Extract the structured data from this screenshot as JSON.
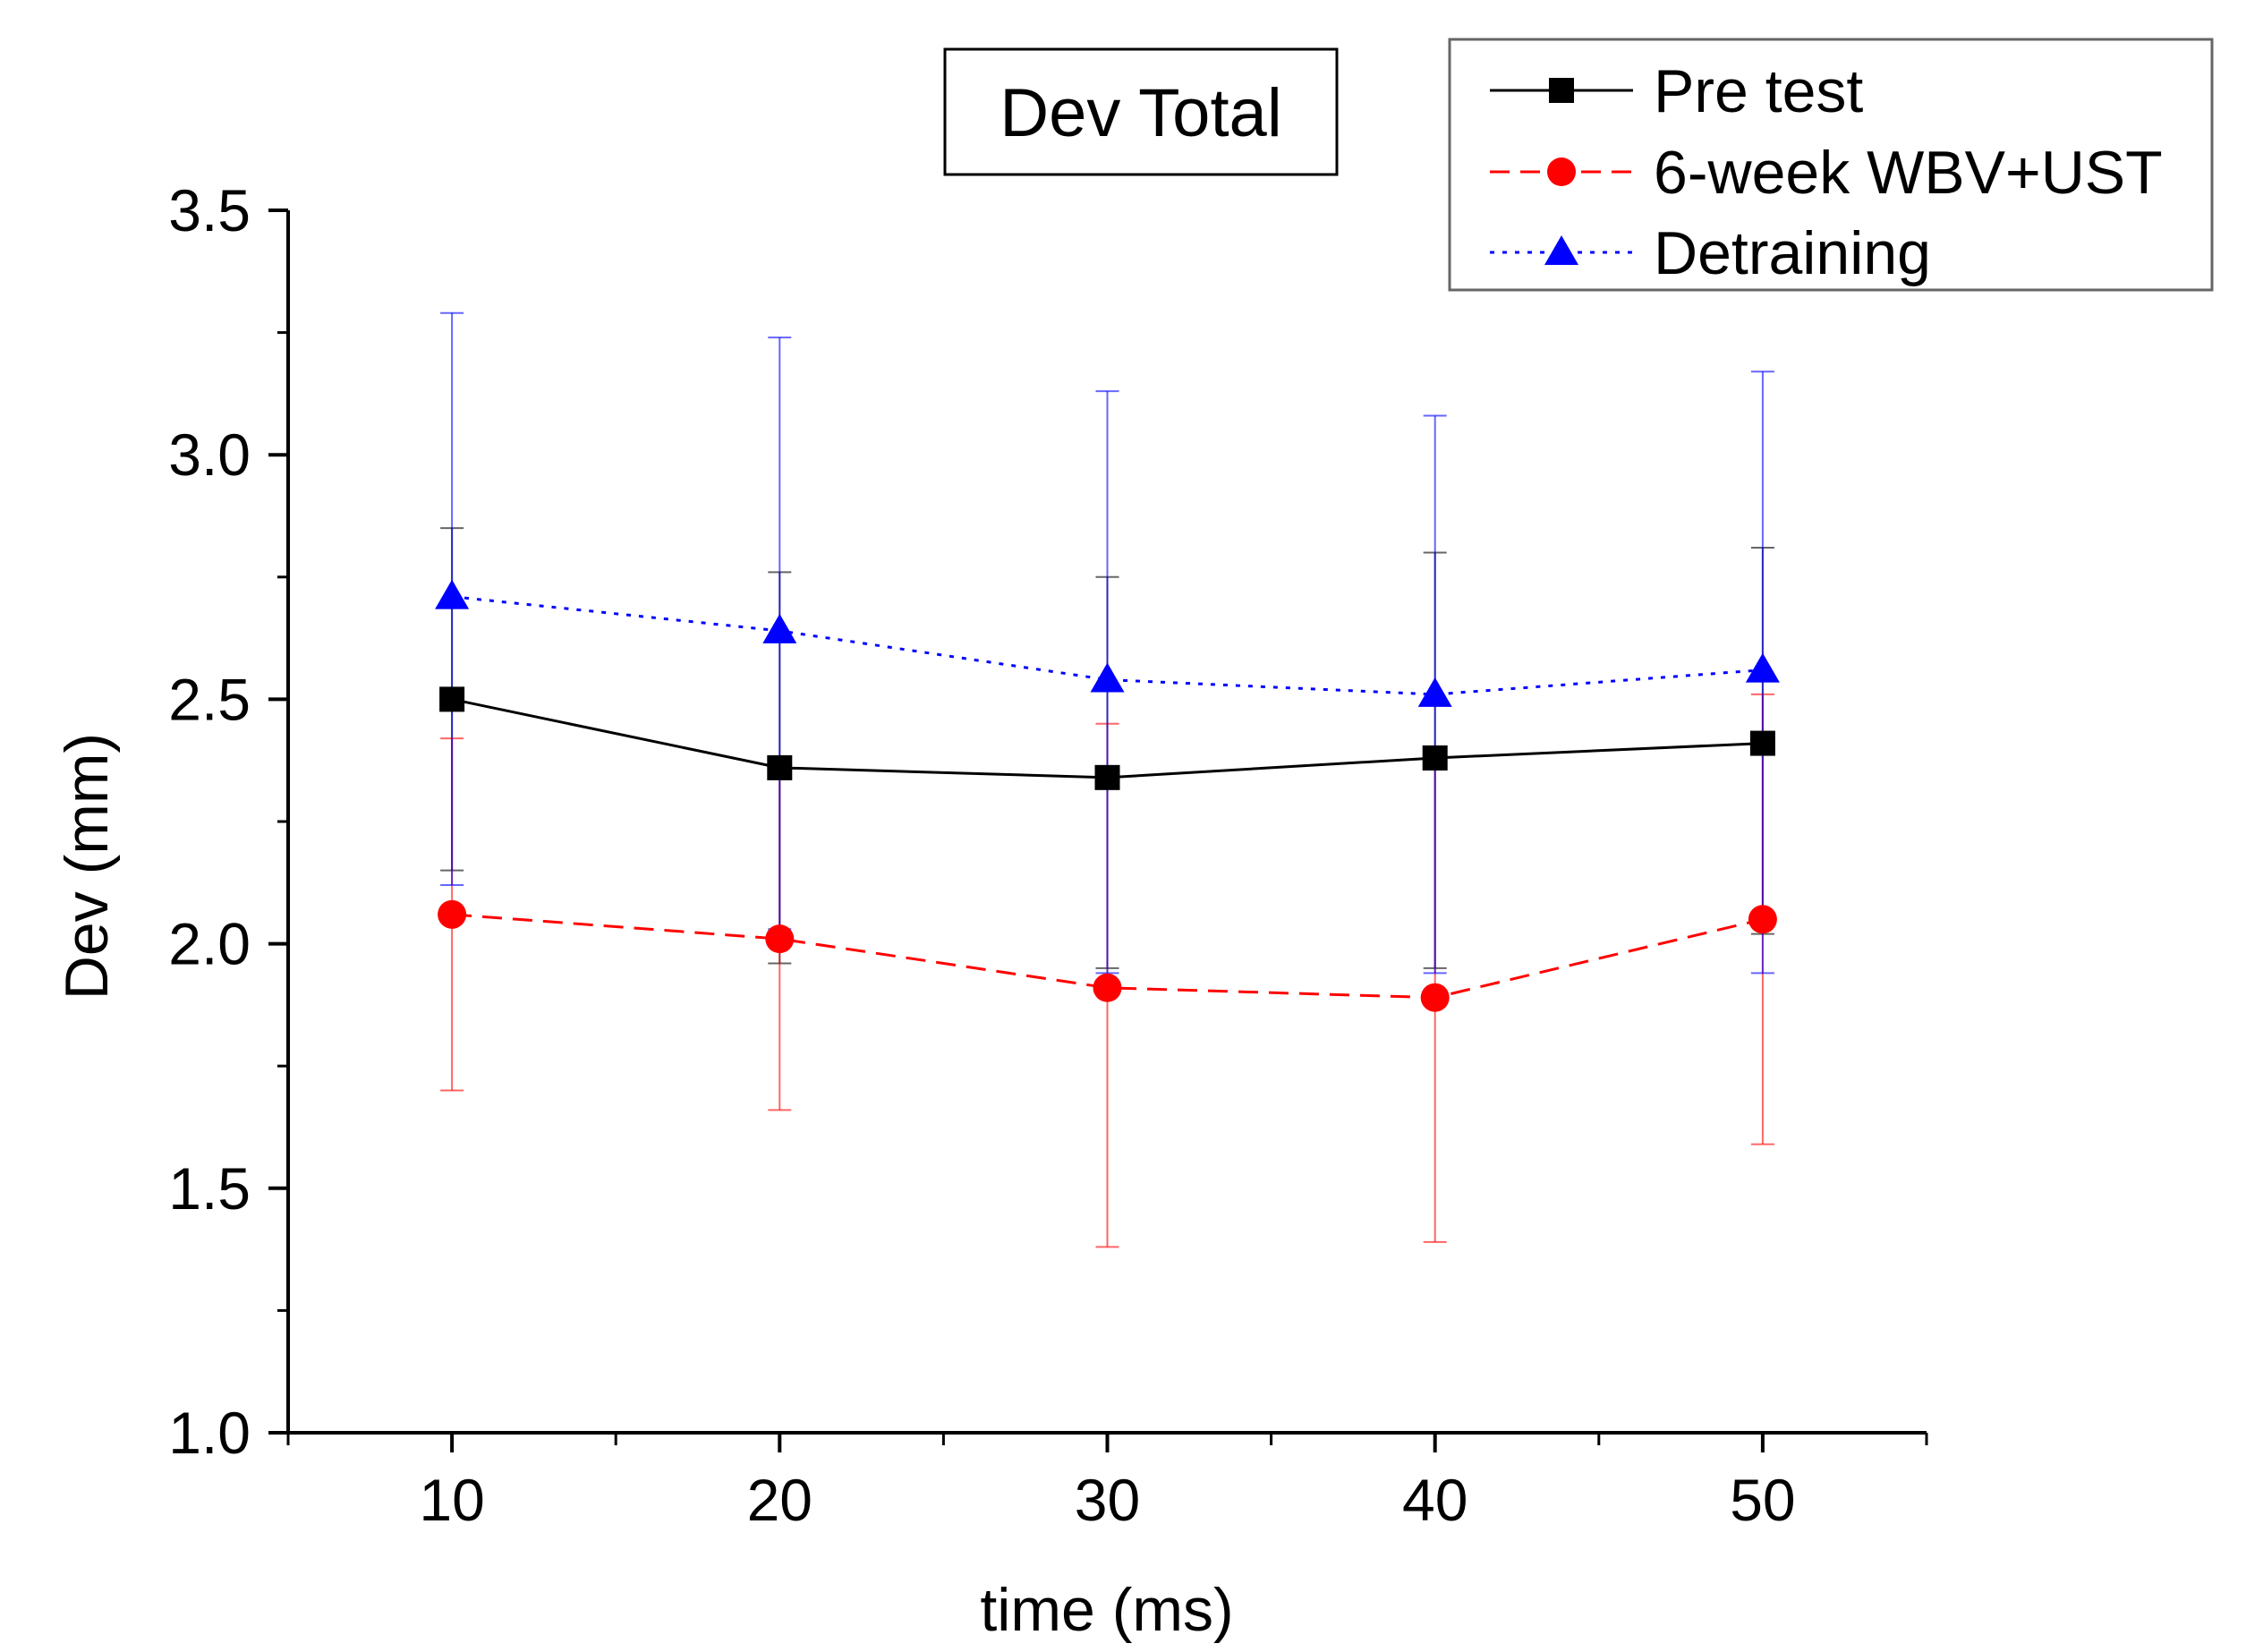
{
  "chart_data": {
    "type": "line",
    "title": "Dev Total",
    "xlabel": "time (ms)",
    "ylabel": "Dev (mm)",
    "x": [
      10,
      20,
      30,
      40,
      50
    ],
    "xlim": [
      5,
      55
    ],
    "ylim": [
      1.0,
      3.5
    ],
    "xticks": [
      "10",
      "20",
      "30",
      "40",
      "50"
    ],
    "yticks": [
      "1.0",
      "1.5",
      "2.0",
      "2.5",
      "3.0",
      "3.5"
    ],
    "grid": false,
    "legend_position": "top-right",
    "series": [
      {
        "name": "Pre test",
        "color": "#000000",
        "line_style": "solid",
        "marker": "square",
        "values": [
          2.5,
          2.36,
          2.34,
          2.38,
          2.41
        ],
        "error_upper": [
          2.85,
          2.76,
          2.75,
          2.8,
          2.81
        ],
        "error_lower": [
          2.15,
          1.96,
          1.95,
          1.95,
          2.02
        ]
      },
      {
        "name": "6-week WBV+UST",
        "color": "#ff0000",
        "line_style": "dashed",
        "marker": "circle",
        "values": [
          2.06,
          2.01,
          1.91,
          1.89,
          2.05
        ],
        "error_upper": [
          2.42,
          2.36,
          2.45,
          2.38,
          2.51
        ],
        "error_lower": [
          1.7,
          1.66,
          1.38,
          1.39,
          1.59
        ]
      },
      {
        "name": "Detraining",
        "color": "#0000ff",
        "line_style": "dotted",
        "marker": "triangle",
        "values": [
          2.71,
          2.64,
          2.54,
          2.51,
          2.56
        ],
        "error_upper": [
          3.29,
          3.24,
          3.13,
          3.08,
          3.17
        ],
        "error_lower": [
          2.12,
          2.03,
          1.94,
          1.94,
          1.94
        ]
      }
    ]
  }
}
